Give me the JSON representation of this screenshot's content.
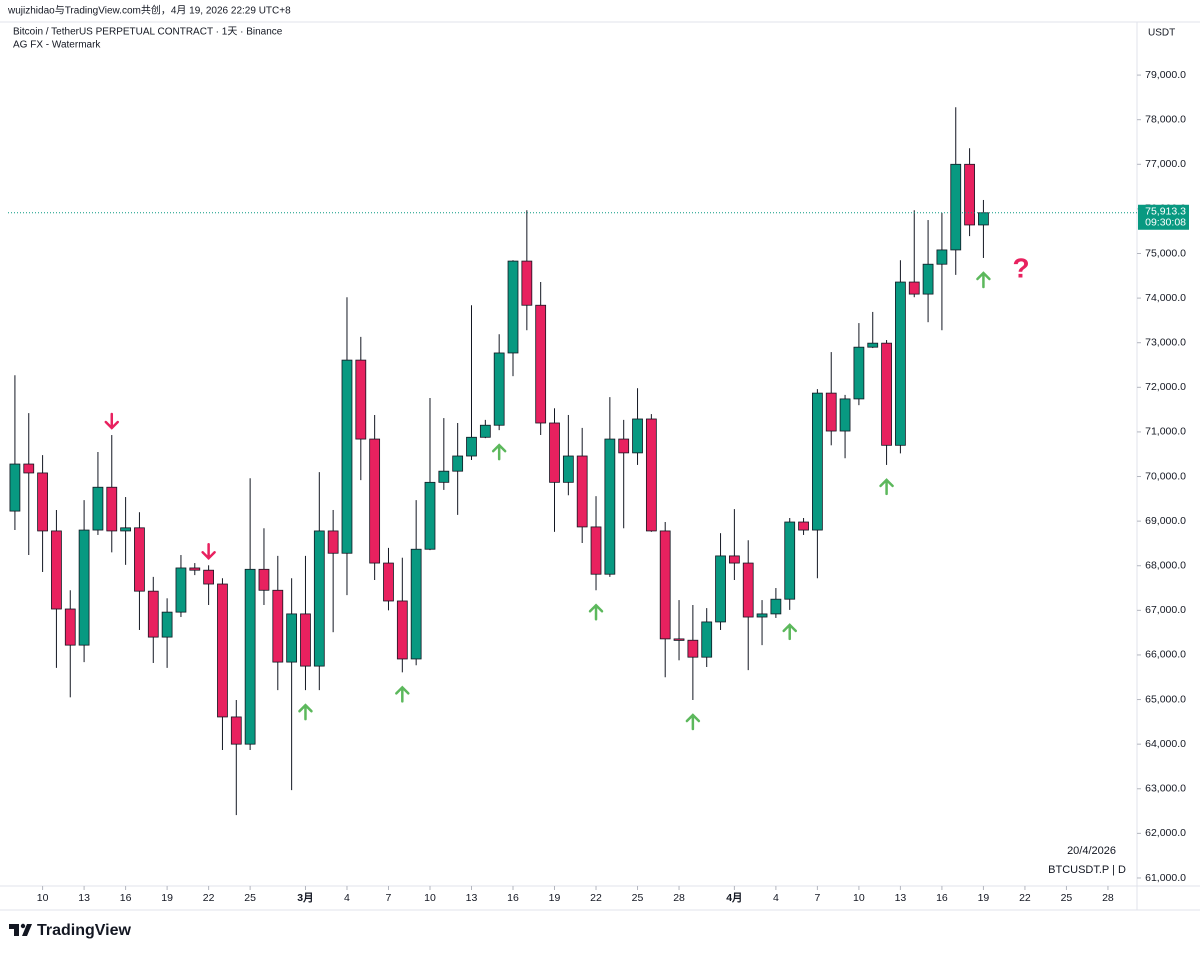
{
  "header": "wujizhidao与TradingView.com共创，4月 19, 2026 22:29 UTC+8",
  "logo": "TradingView",
  "chart_data": {
    "type": "candlestick",
    "title": "Bitcoin / TetherUS PERPETUAL CONTRACT · 1天 · Binance",
    "subtitle": "AG FX - Watermark",
    "currency": "USDT",
    "date_label": "20/4/2026",
    "symbol_label": "BTCUSDT.P | D",
    "annotation": "?",
    "countdown": "09:30:08",
    "last_price": {
      "value": 75913.3,
      "label": "75,913.3"
    },
    "up_color": "#089981",
    "down_color": "#e8215f",
    "series": [
      {
        "name": "BTCUSDT.P",
        "open": [
          69225,
          70280,
          70080,
          68780,
          67030,
          66220,
          68800,
          69760,
          68780,
          68850,
          67430,
          66400,
          66960,
          67950,
          67900,
          67590,
          64610,
          64000,
          67920,
          67450,
          65840,
          66920,
          65750,
          68780,
          68280,
          72610,
          70840,
          68060,
          67210,
          65910,
          68370,
          69870,
          70120,
          70460,
          70880,
          71150,
          72770,
          74830,
          73840,
          71200,
          69870,
          70460,
          68870,
          67810,
          70840,
          70530,
          71290,
          68780,
          66360,
          66330,
          65950,
          66740,
          68220,
          68060,
          66850,
          66920,
          67250,
          68980,
          68800,
          71870,
          71020,
          71740,
          72900,
          72990,
          70700,
          74360,
          74090,
          74760,
          75080,
          77000,
          75640
        ],
        "high": [
          72270,
          71420,
          70480,
          69250,
          67450,
          69470,
          70550,
          70930,
          69540,
          69200,
          67750,
          67270,
          68240,
          68060,
          68010,
          67720,
          64990,
          69960,
          68840,
          68220,
          67720,
          68220,
          70100,
          69250,
          74020,
          73130,
          71380,
          68400,
          68180,
          69470,
          71760,
          71310,
          71200,
          73840,
          71270,
          73190,
          74850,
          75970,
          74360,
          71530,
          71380,
          71090,
          69560,
          71780,
          71270,
          71980,
          71400,
          68980,
          67230,
          67120,
          67050,
          68730,
          69270,
          68570,
          67230,
          67500,
          69070,
          69070,
          71960,
          72790,
          71830,
          73440,
          73690,
          73060,
          74850,
          75970,
          75750,
          75910,
          78280,
          77360,
          76200
        ],
        "low": [
          68800,
          68240,
          67860,
          65710,
          65050,
          65840,
          68690,
          68300,
          68020,
          66560,
          65820,
          65710,
          66850,
          67790,
          67120,
          63870,
          62410,
          63870,
          67120,
          65210,
          62970,
          65210,
          65210,
          66510,
          67340,
          69920,
          67680,
          67000,
          65610,
          65770,
          68350,
          69700,
          69140,
          70370,
          70860,
          71040,
          72250,
          73280,
          70930,
          68760,
          69580,
          68510,
          67450,
          67750,
          68840,
          70260,
          68760,
          65500,
          65880,
          64990,
          65730,
          66560,
          67680,
          65660,
          66220,
          66830,
          67010,
          68690,
          67720,
          70700,
          70410,
          71600,
          72880,
          70260,
          70520,
          74020,
          73460,
          73280,
          74520,
          75390,
          74900
        ],
        "close": [
          70280,
          70080,
          68780,
          67030,
          66220,
          68800,
          69760,
          68780,
          68850,
          67430,
          66400,
          66960,
          67950,
          67900,
          67590,
          64610,
          64000,
          67920,
          67450,
          65840,
          66920,
          65750,
          68780,
          68280,
          72610,
          70840,
          68060,
          67210,
          65910,
          68370,
          69870,
          70120,
          70460,
          70880,
          71150,
          72770,
          74830,
          73840,
          71200,
          69870,
          70460,
          68870,
          67810,
          70840,
          70530,
          71290,
          68780,
          66360,
          66330,
          65950,
          66740,
          68220,
          68060,
          66850,
          66920,
          67250,
          68980,
          68800,
          71870,
          71020,
          71740,
          72900,
          72990,
          70700,
          74360,
          74090,
          74760,
          75080,
          77000,
          75640,
          75913.3
        ]
      }
    ],
    "xlim": [
      -0.5,
      81.1
    ],
    "xticks": [
      {
        "value": 2,
        "label": "10"
      },
      {
        "value": 5,
        "label": "13"
      },
      {
        "value": 8,
        "label": "16"
      },
      {
        "value": 11,
        "label": "19"
      },
      {
        "value": 14,
        "label": "22"
      },
      {
        "value": 17,
        "label": "25"
      },
      {
        "value": 21,
        "label": "3月"
      },
      {
        "value": 24,
        "label": "4"
      },
      {
        "value": 27,
        "label": "7"
      },
      {
        "value": 30,
        "label": "10"
      },
      {
        "value": 33,
        "label": "13"
      },
      {
        "value": 36,
        "label": "16"
      },
      {
        "value": 39,
        "label": "19"
      },
      {
        "value": 42,
        "label": "22"
      },
      {
        "value": 45,
        "label": "25"
      },
      {
        "value": 48,
        "label": "28"
      },
      {
        "value": 52,
        "label": "4月"
      },
      {
        "value": 55,
        "label": "4"
      },
      {
        "value": 58,
        "label": "7"
      },
      {
        "value": 61,
        "label": "10"
      },
      {
        "value": 64,
        "label": "13"
      },
      {
        "value": 67,
        "label": "16"
      },
      {
        "value": 70,
        "label": "19"
      },
      {
        "value": 73,
        "label": "22"
      },
      {
        "value": 76,
        "label": "25"
      },
      {
        "value": 79,
        "label": "28"
      }
    ],
    "ylim": [
      60820,
      80190
    ],
    "yticks": [
      {
        "value": 61000,
        "label": "61,000.0"
      },
      {
        "value": 62000,
        "label": "62,000.0"
      },
      {
        "value": 63000,
        "label": "63,000.0"
      },
      {
        "value": 64000,
        "label": "64,000.0"
      },
      {
        "value": 65000,
        "label": "65,000.0"
      },
      {
        "value": 66000,
        "label": "66,000.0"
      },
      {
        "value": 67000,
        "label": "67,000.0"
      },
      {
        "value": 68000,
        "label": "68,000.0"
      },
      {
        "value": 69000,
        "label": "69,000.0"
      },
      {
        "value": 70000,
        "label": "70,000.0"
      },
      {
        "value": 71000,
        "label": "71,000.0"
      },
      {
        "value": 72000,
        "label": "72,000.0"
      },
      {
        "value": 73000,
        "label": "73,000.0"
      },
      {
        "value": 74000,
        "label": "74,000.0"
      },
      {
        "value": 75000,
        "label": "75,000.0"
      },
      {
        "value": 76000,
        "label": "76,000.0"
      },
      {
        "value": 77000,
        "label": "77,000.0"
      },
      {
        "value": 78000,
        "label": "78,000.0"
      },
      {
        "value": 79000,
        "label": "79,000.0"
      }
    ]
  }
}
